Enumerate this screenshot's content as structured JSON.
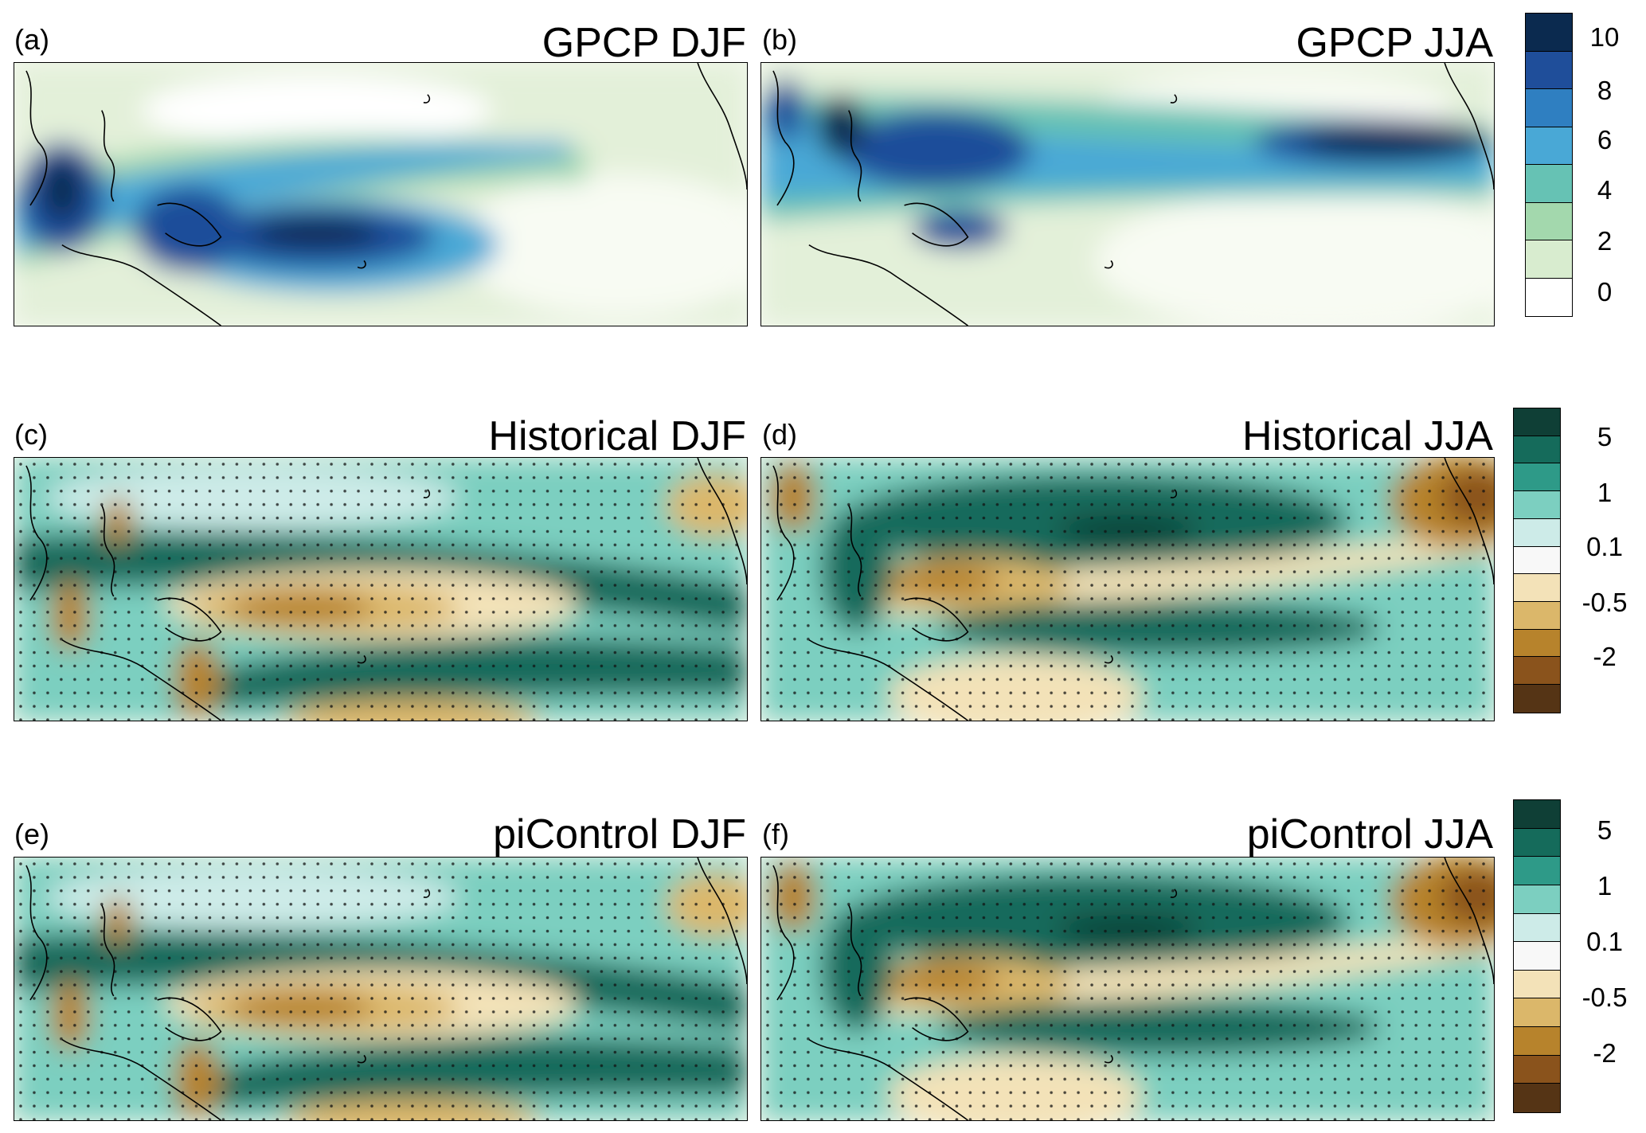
{
  "panels": [
    {
      "id": "a",
      "letter": "(a)",
      "title": "GPCP DJF",
      "kind": "clim",
      "season": "DJF"
    },
    {
      "id": "b",
      "letter": "(b)",
      "title": "GPCP JJA",
      "kind": "clim",
      "season": "JJA"
    },
    {
      "id": "c",
      "letter": "(c)",
      "title": "Historical DJF",
      "kind": "anom",
      "season": "DJF"
    },
    {
      "id": "d",
      "letter": "(d)",
      "title": "Historical JJA",
      "kind": "anom",
      "season": "JJA"
    },
    {
      "id": "e",
      "letter": "(e)",
      "title": "piControl DJF",
      "kind": "anom",
      "season": "DJF"
    },
    {
      "id": "f",
      "letter": "(f)",
      "title": "piControl JJA",
      "kind": "anom",
      "season": "JJA"
    }
  ],
  "colorbars": [
    {
      "id": "clim",
      "labels": [
        "10",
        "8",
        "6",
        "4",
        "2",
        "0"
      ],
      "colors": [
        "#0b2a4f",
        "#1f4e9a",
        "#2f7fc1",
        "#49a8d6",
        "#66c2b4",
        "#a3d8ad",
        "#d8eccf",
        "#ffffff"
      ]
    },
    {
      "id": "anom1",
      "labels": [
        "5",
        "1",
        "0.1",
        "-0.5",
        "-2"
      ],
      "colors": [
        "#0f3f36",
        "#156b5b",
        "#2e9a88",
        "#7ccfc0",
        "#cdebe8",
        "#f8f8f8",
        "#f3e2b8",
        "#dbb76a",
        "#b7832c",
        "#8a531c",
        "#553415"
      ]
    },
    {
      "id": "anom2",
      "labels": [
        "5",
        "1",
        "0.1",
        "-0.5",
        "-2"
      ],
      "colors": [
        "#0f3f36",
        "#156b5b",
        "#2e9a88",
        "#7ccfc0",
        "#cdebe8",
        "#f8f8f8",
        "#f3e2b8",
        "#dbb76a",
        "#b7832c",
        "#8a531c",
        "#553415"
      ]
    }
  ]
}
